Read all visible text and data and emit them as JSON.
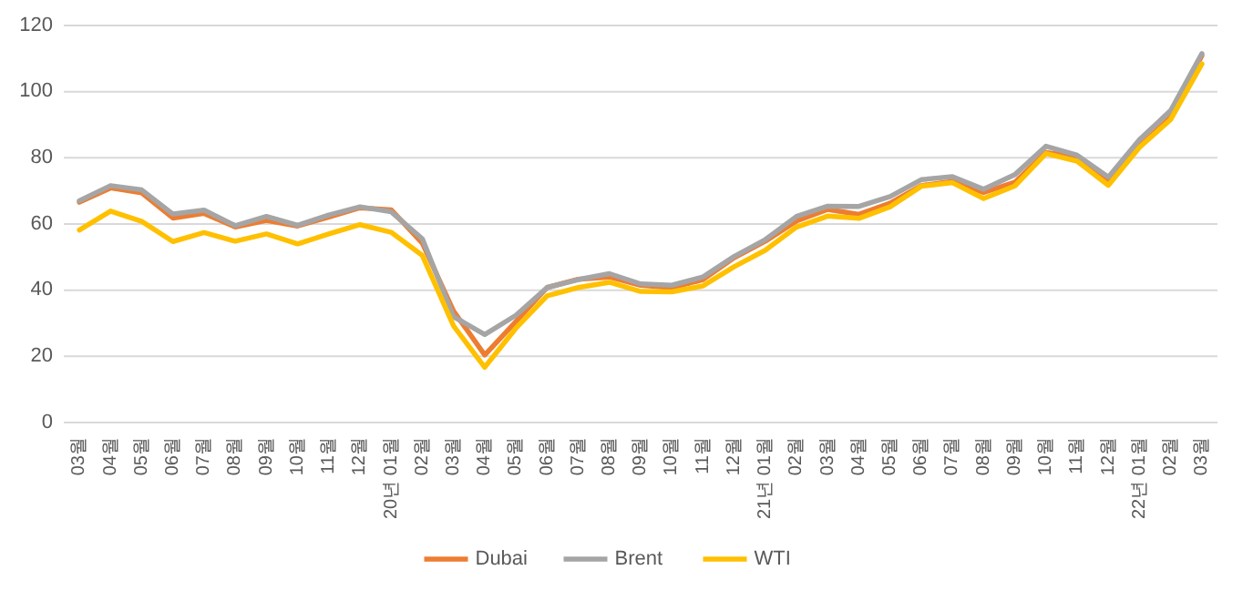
{
  "chart_data": {
    "type": "line",
    "categories": [
      "03월",
      "04월",
      "05월",
      "06월",
      "07월",
      "08월",
      "09월",
      "10월",
      "11월",
      "12월",
      "20년 01월",
      "02월",
      "03월",
      "04월",
      "05월",
      "06월",
      "07월",
      "08월",
      "09월",
      "10월",
      "11월",
      "12월",
      "21년 01월",
      "02월",
      "03월",
      "04월",
      "05월",
      "06월",
      "07월",
      "08월",
      "09월",
      "10월",
      "11월",
      "12월",
      "22년 01월",
      "02월",
      "03월"
    ],
    "series": [
      {
        "name": "Dubai",
        "color": "#ed7d31",
        "values": [
          66.6,
          70.9,
          69.4,
          61.8,
          63.2,
          59.1,
          61.1,
          59.4,
          62.1,
          64.9,
          64.3,
          54.2,
          33.7,
          20.4,
          30.5,
          40.8,
          43.3,
          44.0,
          41.5,
          40.7,
          43.2,
          49.8,
          54.8,
          60.9,
          64.4,
          62.9,
          66.3,
          71.6,
          72.9,
          69.5,
          72.6,
          81.6,
          80.3,
          73.2,
          83.5,
          92.3,
          110.9
        ]
      },
      {
        "name": "Brent",
        "color": "#a5a5a5",
        "values": [
          67.0,
          71.6,
          70.3,
          63.0,
          64.2,
          59.5,
          62.3,
          59.6,
          62.7,
          65.2,
          63.7,
          55.5,
          32.0,
          26.6,
          32.4,
          40.8,
          43.2,
          45.0,
          41.9,
          41.5,
          44.0,
          50.2,
          55.3,
          62.3,
          65.4,
          65.3,
          68.3,
          73.4,
          74.3,
          70.5,
          74.9,
          83.5,
          80.8,
          74.2,
          85.5,
          94.3,
          111.5
        ]
      },
      {
        "name": "WTI",
        "color": "#ffc000",
        "values": [
          58.2,
          63.9,
          60.8,
          54.7,
          57.4,
          54.8,
          57.0,
          54.0,
          57.0,
          59.8,
          57.5,
          50.5,
          29.2,
          16.7,
          28.5,
          38.3,
          40.8,
          42.4,
          39.6,
          39.5,
          41.3,
          47.1,
          52.1,
          59.1,
          62.4,
          61.7,
          65.2,
          71.4,
          72.5,
          67.7,
          71.5,
          81.3,
          79.0,
          71.7,
          83.2,
          91.6,
          108.4
        ]
      }
    ],
    "ylim": [
      0,
      120
    ],
    "yticks": [
      0,
      20,
      40,
      60,
      80,
      100,
      120
    ],
    "grid": "y",
    "legend": "bottom",
    "line_style": "solid"
  }
}
